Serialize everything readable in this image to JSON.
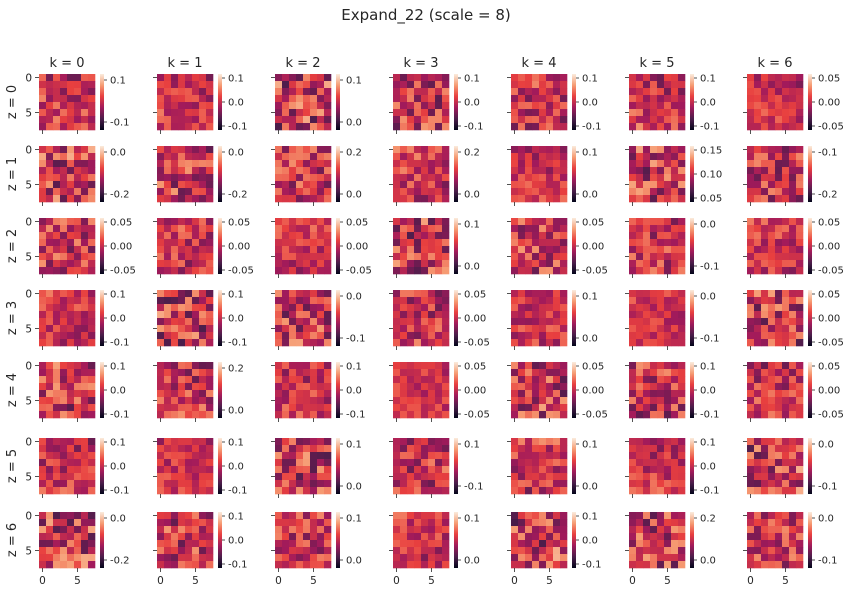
{
  "chart_data": {
    "type": "heatmap",
    "title": "Expand_22 (scale = 8)",
    "grid_size": 8,
    "x_ticks": [
      "0",
      "5"
    ],
    "y_ticks": [
      "0",
      "5"
    ],
    "col_titles": [
      "k = 0",
      "k = 1",
      "k = 2",
      "k = 3",
      "k = 4",
      "k = 5",
      "k = 6"
    ],
    "row_titles": [
      "z = 0",
      "z = 1",
      "z = 2",
      "z = 3",
      "z = 4",
      "z = 5",
      "z = 6"
    ],
    "colormap": "rocket",
    "colorbar_ticks": [
      [
        [
          "0.1",
          "-0.1"
        ],
        [
          "0.1",
          "0.0",
          "-0.1"
        ],
        [
          "0.1",
          "0.0"
        ],
        [
          "0.1",
          "0.0",
          "-0.1"
        ],
        [
          "0.1",
          "0.0",
          "-0.1"
        ],
        [
          "0.1",
          "0.0",
          "-0.1"
        ],
        [
          "0.05",
          "0.00",
          "-0.05"
        ]
      ],
      [
        [
          "0.0",
          "-0.2"
        ],
        [
          "0.0",
          "-0.2"
        ],
        [
          "0.2",
          "0.0"
        ],
        [
          "0.2",
          "0.0"
        ],
        [
          "0.1",
          "0.0"
        ],
        [
          "0.15",
          "0.10",
          "0.05"
        ],
        [
          "-0.1",
          "-0.2"
        ]
      ],
      [
        [
          "0.05",
          "0.00",
          "-0.05"
        ],
        [
          "0.05",
          "0.00",
          "-0.05"
        ],
        [
          "0.05",
          "0.00",
          "-0.05"
        ],
        [
          "0.1",
          "0.0"
        ],
        [
          "0.05",
          "0.00",
          "-0.05"
        ],
        [
          "0.0",
          "-0.1"
        ],
        [
          "0.05",
          "0.00",
          "-0.05"
        ]
      ],
      [
        [
          "0.1",
          "0.0",
          "-0.1"
        ],
        [
          "0.1",
          "0.0",
          "-0.1"
        ],
        [
          "0.0",
          "-0.1"
        ],
        [
          "0.05",
          "0.00",
          "-0.05"
        ],
        [
          "0.1",
          "0.0"
        ],
        [
          "0.0",
          "-0.1"
        ],
        [
          "0.05",
          "0.00",
          "-0.05"
        ]
      ],
      [
        [
          "0.1",
          "0.0",
          "-0.1"
        ],
        [
          "0.2",
          "0.0"
        ],
        [
          "0.1",
          "0.0",
          "-0.1"
        ],
        [
          "0.05",
          "0.00",
          "-0.05"
        ],
        [
          "0.05",
          "0.00",
          "-0.05"
        ],
        [
          "0.1",
          "0.0",
          "-0.1"
        ],
        [
          "0.05",
          "0.00",
          "-0.05"
        ]
      ],
      [
        [
          "0.1",
          "0.0",
          "-0.1"
        ],
        [
          "0.1",
          "0.0",
          "-0.1"
        ],
        [
          "0.1",
          "0.0"
        ],
        [
          "0.1",
          "-0.1"
        ],
        [
          "0.1",
          "0.0"
        ],
        [
          "0.1",
          "0.0",
          "-0.1"
        ],
        [
          "0.0",
          "-0.1"
        ]
      ],
      [
        [
          "0.0",
          "-0.2"
        ],
        [
          "0.1",
          "0.0",
          "-0.1"
        ],
        [
          "0.1",
          "0.0"
        ],
        [
          "0.1",
          "0.0"
        ],
        [
          "0.1",
          "0.0",
          "-0.1"
        ],
        [
          "0.2",
          "0.0"
        ],
        [
          "0.0",
          "-0.1"
        ]
      ]
    ],
    "colors": {
      "rocket_stops": [
        "#03051a",
        "#4c1d4b",
        "#a11a5b",
        "#e83f3f",
        "#f69c73",
        "#faebdd"
      ],
      "axis": "#262626",
      "background": "#ffffff"
    }
  }
}
